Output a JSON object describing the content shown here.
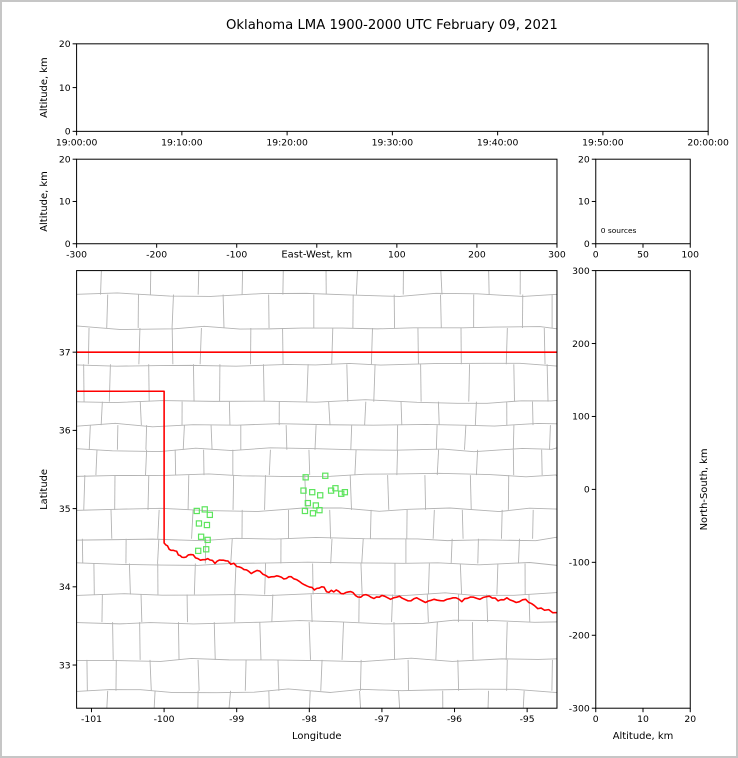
{
  "title": "Oklahoma LMA 1900-2000 UTC February 09, 2021",
  "colors": {
    "background": "#ffffff",
    "frame": "#c6c6c6",
    "axis": "#000000",
    "county": "#b3b3b3",
    "state_border": "#ff0000",
    "marker": "#5ce45c"
  },
  "chart_data": [
    {
      "id": "time_height",
      "type": "scatter",
      "xlabel": "",
      "ylabel": "Altitude, km",
      "xlim": [
        0,
        3600
      ],
      "ylim": [
        0,
        20
      ],
      "xticks": [
        {
          "v": 0,
          "label": "19:00:00"
        },
        {
          "v": 600,
          "label": "19:10:00"
        },
        {
          "v": 1200,
          "label": "19:20:00"
        },
        {
          "v": 1800,
          "label": "19:30:00"
        },
        {
          "v": 2400,
          "label": "19:40:00"
        },
        {
          "v": 3000,
          "label": "19:50:00"
        },
        {
          "v": 3600,
          "label": "20:00:00"
        }
      ],
      "yticks": [
        {
          "v": 0,
          "label": "0"
        },
        {
          "v": 10,
          "label": "10"
        },
        {
          "v": 20,
          "label": "20"
        }
      ],
      "points": []
    },
    {
      "id": "ew_height",
      "type": "scatter",
      "xlabel": "East-West, km",
      "xlabel_inline": true,
      "ylabel": "Altitude, km",
      "xlim": [
        -300,
        300
      ],
      "ylim": [
        0,
        20
      ],
      "xticks": [
        {
          "v": -300,
          "label": "-300"
        },
        {
          "v": -200,
          "label": "-200"
        },
        {
          "v": -100,
          "label": "-100"
        },
        {
          "v": 0,
          "label": ""
        },
        {
          "v": 100,
          "label": "100"
        },
        {
          "v": 200,
          "label": "200"
        },
        {
          "v": 300,
          "label": "300"
        }
      ],
      "yticks": [
        {
          "v": 0,
          "label": "0"
        },
        {
          "v": 10,
          "label": "10"
        },
        {
          "v": 20,
          "label": "20"
        }
      ],
      "points": []
    },
    {
      "id": "alt_histogram",
      "type": "histogram",
      "annotation": "0 sources",
      "xlim": [
        0,
        100
      ],
      "ylim": [
        0,
        20
      ],
      "xticks": [
        {
          "v": 0,
          "label": "0"
        },
        {
          "v": 50,
          "label": "50"
        },
        {
          "v": 100,
          "label": "100"
        }
      ],
      "yticks": [
        {
          "v": 0,
          "label": "0"
        },
        {
          "v": 10,
          "label": "10"
        },
        {
          "v": 20,
          "label": "20"
        }
      ],
      "values": []
    },
    {
      "id": "plan_view",
      "type": "scatter",
      "xlabel": "Longitude",
      "ylabel": "Latitude",
      "xlim": [
        -101.205,
        -94.589
      ],
      "ylim": [
        32.448,
        38.043
      ],
      "xticks": [
        {
          "v": -101,
          "label": "-101"
        },
        {
          "v": -100,
          "label": "-100"
        },
        {
          "v": -99,
          "label": "-99"
        },
        {
          "v": -98,
          "label": "-98"
        },
        {
          "v": -97,
          "label": "-97"
        },
        {
          "v": -96,
          "label": "-96"
        },
        {
          "v": -95,
          "label": "-95"
        }
      ],
      "yticks": [
        {
          "v": 33,
          "label": "33"
        },
        {
          "v": 34,
          "label": "34"
        },
        {
          "v": 35,
          "label": "35"
        },
        {
          "v": 36,
          "label": "36"
        },
        {
          "v": 37,
          "label": "37"
        }
      ],
      "marker": "open-square",
      "points": [
        [
          -98.05,
          35.4
        ],
        [
          -97.78,
          35.42
        ],
        [
          -98.08,
          35.23
        ],
        [
          -97.96,
          35.21
        ],
        [
          -97.85,
          35.17
        ],
        [
          -97.7,
          35.23
        ],
        [
          -97.64,
          35.26
        ],
        [
          -97.51,
          35.21
        ],
        [
          -97.56,
          35.19
        ],
        [
          -98.02,
          35.07
        ],
        [
          -97.91,
          35.04
        ],
        [
          -98.06,
          34.97
        ],
        [
          -97.95,
          34.94
        ],
        [
          -97.86,
          34.98
        ],
        [
          -99.55,
          34.97
        ],
        [
          -99.44,
          34.99
        ],
        [
          -99.37,
          34.92
        ],
        [
          -99.52,
          34.81
        ],
        [
          -99.41,
          34.79
        ],
        [
          -99.49,
          34.64
        ],
        [
          -99.4,
          34.6
        ],
        [
          -99.53,
          34.46
        ],
        [
          -99.42,
          34.48
        ]
      ],
      "overlays": {
        "oklahoma_border": {
          "north_lat": 37,
          "panhandle_lat": 36.5,
          "west_lon": -100,
          "red_river": [
            [
              -100.0,
              34.56
            ],
            [
              -99.93,
              34.48
            ],
            [
              -99.85,
              34.46
            ],
            [
              -99.78,
              34.4
            ],
            [
              -99.7,
              34.38
            ],
            [
              -99.6,
              34.41
            ],
            [
              -99.5,
              34.34
            ],
            [
              -99.4,
              34.36
            ],
            [
              -99.3,
              34.3
            ],
            [
              -99.21,
              34.34
            ],
            [
              -99.12,
              34.33
            ],
            [
              -99.0,
              34.26
            ],
            [
              -98.9,
              34.22
            ],
            [
              -98.8,
              34.17
            ],
            [
              -98.68,
              34.2
            ],
            [
              -98.56,
              34.12
            ],
            [
              -98.45,
              34.14
            ],
            [
              -98.35,
              34.1
            ],
            [
              -98.25,
              34.13
            ],
            [
              -98.14,
              34.07
            ],
            [
              -98.03,
              34.01
            ],
            [
              -97.93,
              33.96
            ],
            [
              -97.83,
              34.0
            ],
            [
              -97.73,
              33.93
            ],
            [
              -97.63,
              33.96
            ],
            [
              -97.53,
              33.91
            ],
            [
              -97.43,
              33.94
            ],
            [
              -97.33,
              33.87
            ],
            [
              -97.22,
              33.9
            ],
            [
              -97.11,
              33.85
            ],
            [
              -97.0,
              33.89
            ],
            [
              -96.88,
              33.84
            ],
            [
              -96.76,
              33.88
            ],
            [
              -96.64,
              33.82
            ],
            [
              -96.52,
              33.86
            ],
            [
              -96.4,
              33.8
            ],
            [
              -96.28,
              33.84
            ],
            [
              -96.15,
              33.82
            ],
            [
              -96.02,
              33.86
            ],
            [
              -95.9,
              33.81
            ],
            [
              -95.78,
              33.87
            ],
            [
              -95.65,
              33.84
            ],
            [
              -95.52,
              33.88
            ],
            [
              -95.4,
              33.82
            ],
            [
              -95.28,
              33.86
            ],
            [
              -95.15,
              33.8
            ],
            [
              -95.02,
              33.84
            ],
            [
              -94.9,
              33.76
            ],
            [
              -94.76,
              33.7
            ],
            [
              -94.589,
              33.67
            ]
          ]
        }
      }
    },
    {
      "id": "ns_height",
      "type": "scatter",
      "xlabel": "Altitude, km",
      "ylabel_right": "North-South, km",
      "xlim": [
        0,
        20
      ],
      "ylim": [
        -300,
        300
      ],
      "xticks": [
        {
          "v": 0,
          "label": "0"
        },
        {
          "v": 10,
          "label": "10"
        },
        {
          "v": 20,
          "label": "20"
        }
      ],
      "yticks": [
        {
          "v": 300,
          "label": "300"
        },
        {
          "v": 200,
          "label": "200"
        },
        {
          "v": 100,
          "label": "100"
        },
        {
          "v": 0,
          "label": "0"
        },
        {
          "v": -100,
          "label": "-100"
        },
        {
          "v": -200,
          "label": "-200"
        },
        {
          "v": -300,
          "label": "-300"
        }
      ],
      "points": []
    }
  ]
}
